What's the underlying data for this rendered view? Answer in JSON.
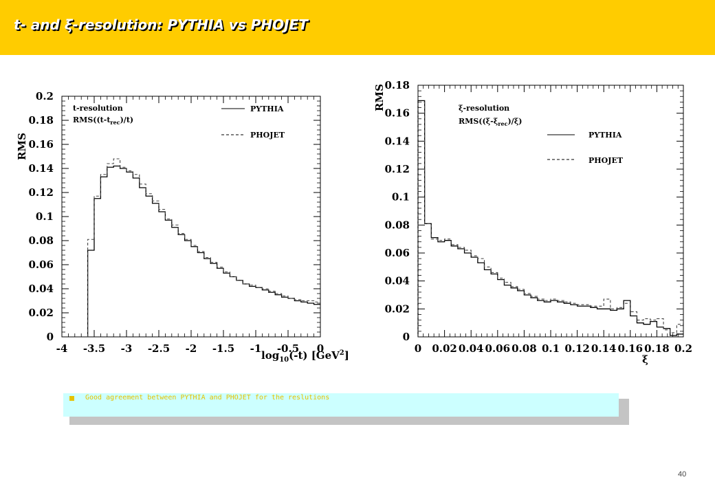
{
  "header": {
    "title": "t- and ξ-resolution: PYTHIA vs PHOJET",
    "bg_color": "#ffcc00",
    "title_color": "#ffffff"
  },
  "note": {
    "text": "Good agreement between PYTHIA and PHOJET for the reslutions",
    "bg_color": "#ccffff",
    "text_color": "#e6c200"
  },
  "page_number": "40",
  "chart_data": [
    {
      "type": "line",
      "step": true,
      "title": "",
      "ylabel": "RMS",
      "xlabel_main": "log",
      "xlabel_sub": "10",
      "xlabel_rest": "(-t) [GeV",
      "xlabel_sup": "2",
      "xlabel_end": "]",
      "annotation_line1": "t-resolution",
      "annotation_line2_a": "RMS((t-t",
      "annotation_line2_sub": "rec",
      "annotation_line2_b": ")/t)",
      "xlim": [
        -4,
        0
      ],
      "ylim": [
        0,
        0.2
      ],
      "xticks": [
        "-4",
        "-3.5",
        "-3",
        "-2.5",
        "-2",
        "-1.5",
        "-1",
        "-0.5",
        "0"
      ],
      "yticks": [
        "0",
        "0.02",
        "0.04",
        "0.06",
        "0.08",
        "0.1",
        "0.12",
        "0.14",
        "0.16",
        "0.18",
        "0.2"
      ],
      "bin_edges": [
        -3.6,
        -3.5,
        -3.4,
        -3.3,
        -3.2,
        -3.1,
        -3.0,
        -2.9,
        -2.8,
        -2.7,
        -2.6,
        -2.5,
        -2.4,
        -2.3,
        -2.2,
        -2.1,
        -2.0,
        -1.9,
        -1.8,
        -1.7,
        -1.6,
        -1.5,
        -1.4,
        -1.3,
        -1.2,
        -1.1,
        -1.0,
        -0.9,
        -0.8,
        -0.7,
        -0.6,
        -0.5,
        -0.4,
        -0.3,
        -0.2,
        -0.1,
        0.0
      ],
      "series": [
        {
          "name": "PYTHIA",
          "style": "solid",
          "values": [
            0.072,
            0.115,
            0.133,
            0.141,
            0.142,
            0.14,
            0.137,
            0.132,
            0.124,
            0.117,
            0.111,
            0.104,
            0.097,
            0.091,
            0.085,
            0.08,
            0.075,
            0.07,
            0.065,
            0.061,
            0.057,
            0.053,
            0.05,
            0.047,
            0.044,
            0.042,
            0.041,
            0.039,
            0.037,
            0.035,
            0.033,
            0.032,
            0.03,
            0.029,
            0.028,
            0.027
          ]
        },
        {
          "name": "PHOJET",
          "style": "dashed",
          "values": [
            0.081,
            0.117,
            0.135,
            0.144,
            0.148,
            0.141,
            0.138,
            0.135,
            0.127,
            0.119,
            0.113,
            0.106,
            0.098,
            0.093,
            0.086,
            0.081,
            0.076,
            0.071,
            0.066,
            0.062,
            0.058,
            0.054,
            0.05,
            0.047,
            0.044,
            0.043,
            0.041,
            0.04,
            0.038,
            0.036,
            0.034,
            0.032,
            0.031,
            0.03,
            0.03,
            0.029
          ]
        }
      ]
    },
    {
      "type": "line",
      "step": true,
      "title": "",
      "ylabel": "RMS",
      "xlabel": "ξ",
      "annotation_line1": "ξ-resolution",
      "annotation_line2_a": "RMS((ξ-ξ",
      "annotation_line2_sub": "rec",
      "annotation_line2_b": ")/ξ)",
      "xlim": [
        0,
        0.2
      ],
      "ylim": [
        0,
        0.18
      ],
      "xticks": [
        "0",
        "0.02",
        "0.04",
        "0.06",
        "0.08",
        "0.1",
        "0.12",
        "0.14",
        "0.16",
        "0.18",
        "0.2"
      ],
      "yticks": [
        "0",
        "0.02",
        "0.04",
        "0.06",
        "0.08",
        "0.1",
        "0.12",
        "0.14",
        "0.16",
        "0.18"
      ],
      "bin_edges": [
        0.0,
        0.005,
        0.01,
        0.015,
        0.02,
        0.025,
        0.03,
        0.035,
        0.04,
        0.045,
        0.05,
        0.055,
        0.06,
        0.065,
        0.07,
        0.075,
        0.08,
        0.085,
        0.09,
        0.095,
        0.1,
        0.105,
        0.11,
        0.115,
        0.12,
        0.125,
        0.13,
        0.135,
        0.14,
        0.145,
        0.15,
        0.155,
        0.16,
        0.165,
        0.17,
        0.175,
        0.18,
        0.185,
        0.19,
        0.195,
        0.2
      ],
      "series": [
        {
          "name": "PYTHIA",
          "style": "solid",
          "values": [
            0.169,
            0.081,
            0.071,
            0.068,
            0.069,
            0.065,
            0.063,
            0.06,
            0.057,
            0.053,
            0.048,
            0.045,
            0.041,
            0.037,
            0.035,
            0.033,
            0.03,
            0.028,
            0.026,
            0.025,
            0.026,
            0.025,
            0.024,
            0.023,
            0.022,
            0.022,
            0.021,
            0.02,
            0.02,
            0.019,
            0.02,
            0.026,
            0.015,
            0.01,
            0.009,
            0.011,
            0.007,
            0.006,
            0.001,
            0.002
          ]
        },
        {
          "name": "PHOJET",
          "style": "dashed",
          "values": [
            0.168,
            0.081,
            0.07,
            0.069,
            0.07,
            0.066,
            0.064,
            0.062,
            0.058,
            0.056,
            0.05,
            0.046,
            0.042,
            0.039,
            0.036,
            0.034,
            0.031,
            0.029,
            0.027,
            0.026,
            0.027,
            0.026,
            0.025,
            0.024,
            0.023,
            0.023,
            0.022,
            0.022,
            0.027,
            0.02,
            0.021,
            0.024,
            0.018,
            0.012,
            0.013,
            0.012,
            0.013,
            0.005,
            0.003,
            0.009
          ]
        }
      ]
    }
  ]
}
